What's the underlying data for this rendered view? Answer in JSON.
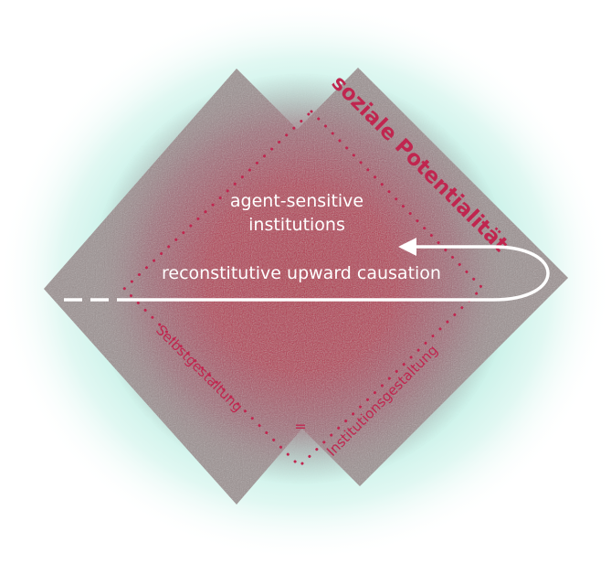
{
  "diagram": {
    "title_rotated": "soziale Potentialität",
    "inner_label_line1": "agent-sensitive",
    "inner_label_line2": "institutions",
    "arrow_label": "reconstitutive upward causation",
    "left_label": "Selbstgestaltung",
    "equals_sign": "=",
    "right_label": "Institutionsgestaltung"
  },
  "colors": {
    "halo": "#bfeee3",
    "diamond_grey": "#9a8f8f",
    "center_red": "#b2183f",
    "text_red": "#c0264f",
    "text_white": "#ffffff"
  }
}
